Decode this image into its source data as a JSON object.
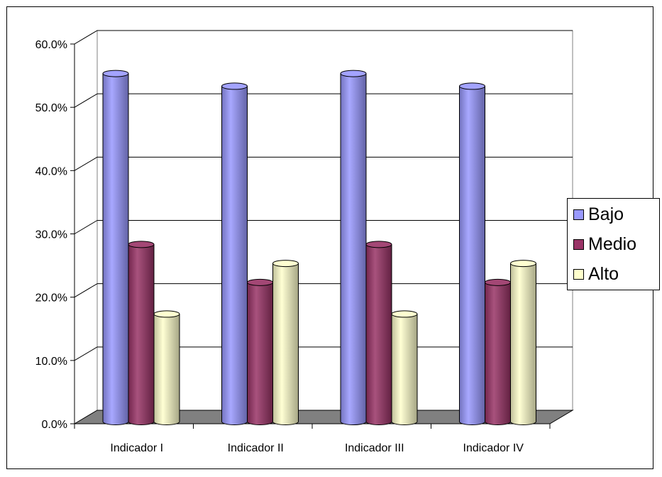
{
  "chart_data": {
    "type": "bar",
    "style": "3d-cylinder",
    "categories": [
      "Indicador I",
      "Indicador II",
      "Indicador III",
      "Indicador IV"
    ],
    "series": [
      {
        "name": "Bajo",
        "color": "#9999ff",
        "values": [
          0.55,
          0.53,
          0.55,
          0.53
        ]
      },
      {
        "name": "Medio",
        "color": "#993366",
        "values": [
          0.28,
          0.22,
          0.28,
          0.22
        ]
      },
      {
        "name": "Alto",
        "color": "#ffffcc",
        "values": [
          0.17,
          0.25,
          0.17,
          0.25
        ]
      }
    ],
    "ylim": [
      0,
      0.6
    ],
    "yticks": [
      "0.0%",
      "10.0%",
      "20.0%",
      "30.0%",
      "40.0%",
      "50.0%",
      "60.0%"
    ],
    "grid": true,
    "legend_position": "right",
    "title": "",
    "xlabel": "",
    "ylabel": ""
  },
  "legend": {
    "items": [
      {
        "label": "Bajo",
        "color": "#9999ff"
      },
      {
        "label": "Medio",
        "color": "#993366"
      },
      {
        "label": "Alto",
        "color": "#ffffcc"
      }
    ]
  }
}
